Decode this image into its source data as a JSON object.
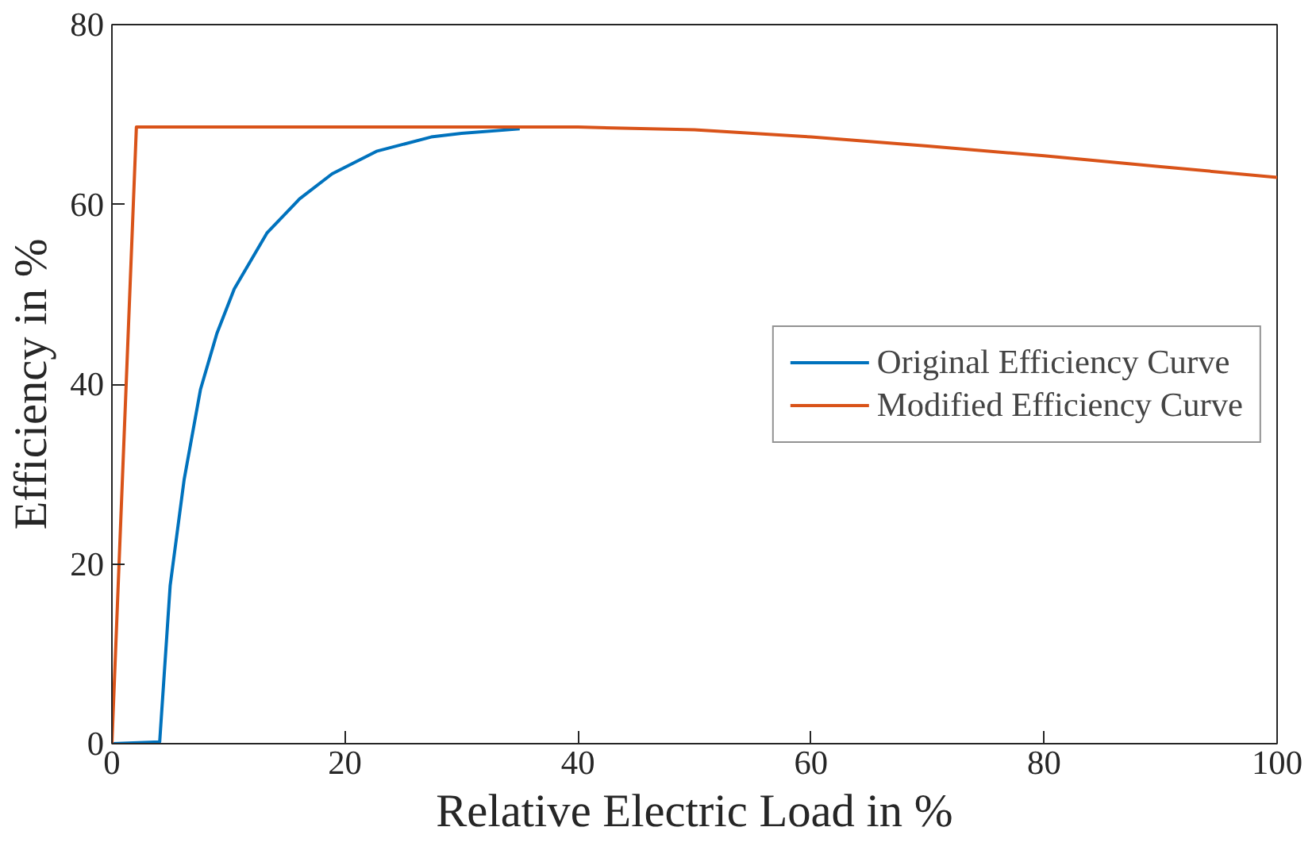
{
  "chart_data": {
    "type": "line",
    "xlabel": "Relative Electric Load in %",
    "ylabel": "Efficiency in %",
    "xlim": [
      0,
      100
    ],
    "ylim": [
      0,
      80
    ],
    "xticks": [
      0,
      20,
      40,
      60,
      80,
      100
    ],
    "yticks": [
      0,
      20,
      40,
      60,
      80
    ],
    "grid": false,
    "legend": "right",
    "line_style": "solid",
    "series": [
      {
        "name": "Original Efficiency Curve",
        "color": "#0072bd",
        "x": [
          0,
          4.1,
          5.0,
          6.2,
          7.6,
          9.0,
          10.5,
          13.3,
          16.1,
          18.9,
          22.7,
          27.4,
          30,
          35
        ],
        "values": [
          0,
          0.2,
          17.6,
          29.4,
          39.4,
          45.6,
          50.6,
          56.8,
          60.6,
          63.4,
          65.9,
          67.5,
          67.9,
          68.4
        ]
      },
      {
        "name": "Modified Efficiency Curve",
        "color": "#d95319",
        "x": [
          0,
          2.1,
          40,
          50,
          60,
          70,
          80,
          90,
          100
        ],
        "values": [
          0,
          68.6,
          68.6,
          68.3,
          67.5,
          66.5,
          65.4,
          64.2,
          63.0
        ]
      }
    ]
  }
}
